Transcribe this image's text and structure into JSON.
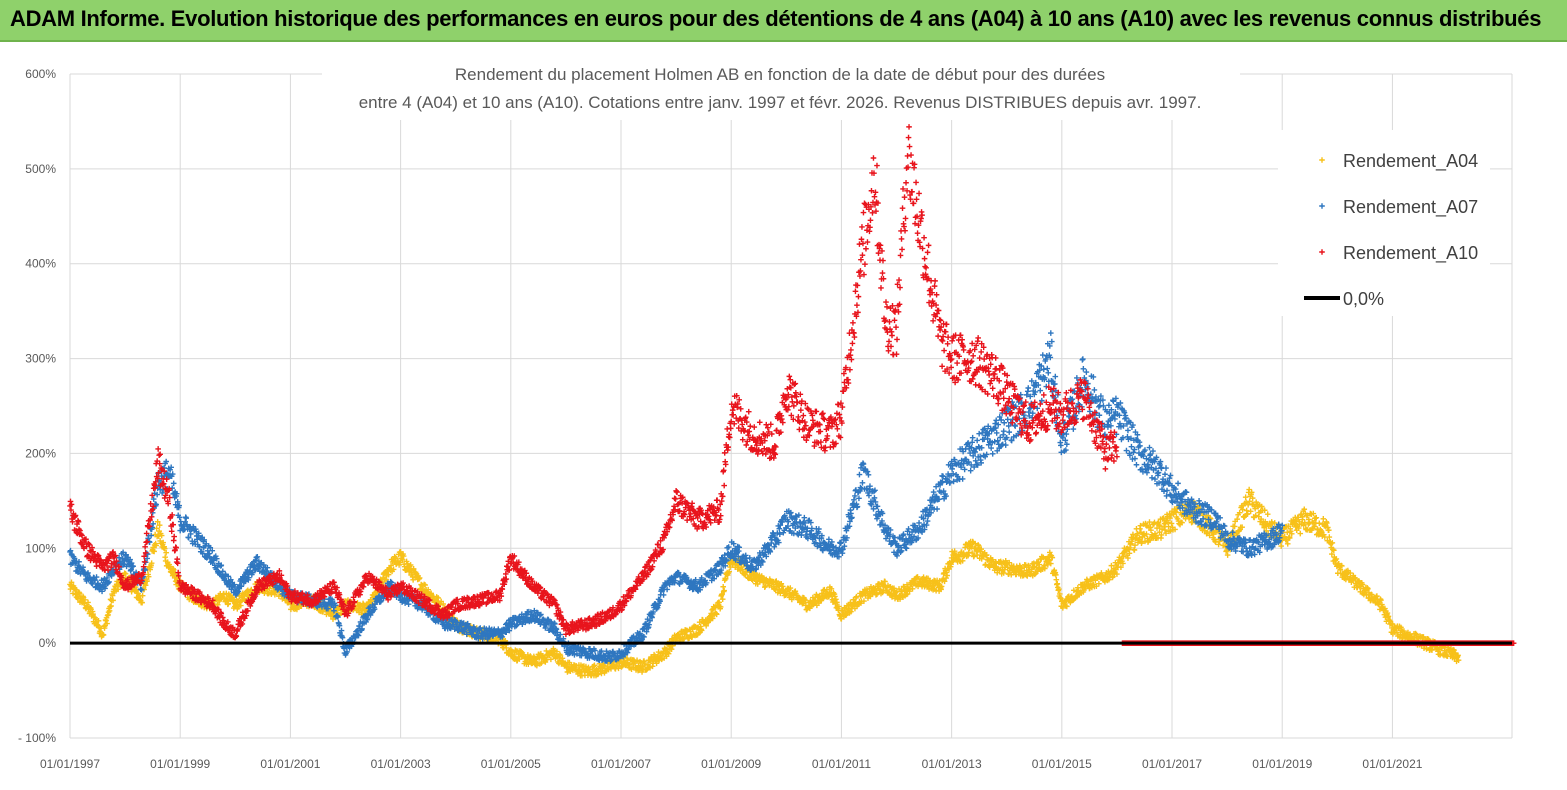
{
  "banner": {
    "text": "ADAM Informe. Evolution historique des performances en euros pour des détentions de 4 ans (A04) à 10 ans (A10) avec les revenus connus distribués"
  },
  "colors": {
    "banner_bg": "#8fd16b",
    "a04": "#f7c11a",
    "a07": "#2f77c0",
    "a10": "#e8141c",
    "zero": "#000000",
    "grid": "#d9d9d9"
  },
  "chart_data": {
    "type": "scatter",
    "title_line1": "Rendement du placement Holmen AB en fonction de la date de début pour des durées",
    "title_line2": "entre 4 (A04) et 10 ans (A10). Cotations entre janv. 1997 et févr. 2026. Revenus DISTRIBUES depuis avr. 1997.",
    "x_range": [
      "1997-01-01",
      "2023-03-01"
    ],
    "x_ticks": [
      "01/01/1997",
      "01/01/1999",
      "01/01/2001",
      "01/01/2003",
      "01/01/2005",
      "01/01/2007",
      "01/01/2009",
      "01/01/2011",
      "01/01/2013",
      "01/01/2015",
      "01/01/2017",
      "01/01/2019",
      "01/01/2021"
    ],
    "y_ticks": [
      "- 100%",
      "0%",
      "100%",
      "200%",
      "300%",
      "400%",
      "500%",
      "600%"
    ],
    "ylim_percent": [
      -100,
      600
    ],
    "grid": true,
    "legend_position": "top-right",
    "legend": [
      "Rendement_A04",
      "Rendement_A07",
      "Rendement_A10",
      "0,0%"
    ],
    "series": [
      {
        "name": "Rendement_A04",
        "x_years": [
          1997.0,
          1997.3,
          1997.6,
          1997.8,
          1998.0,
          1998.3,
          1998.6,
          1998.8,
          1999.0,
          1999.3,
          1999.6,
          1999.8,
          2000.0,
          2000.4,
          2000.8,
          2001.0,
          2001.4,
          2001.8,
          2002.0,
          2002.4,
          2002.8,
          2003.0,
          2003.4,
          2003.8,
          2004.0,
          2004.4,
          2004.8,
          2005.0,
          2005.4,
          2005.8,
          2006.0,
          2006.4,
          2006.8,
          2007.0,
          2007.4,
          2007.8,
          2008.0,
          2008.4,
          2008.8,
          2009.0,
          2009.4,
          2009.8,
          2010.0,
          2010.4,
          2010.8,
          2011.0,
          2011.4,
          2011.8,
          2012.0,
          2012.4,
          2012.8,
          2013.0,
          2013.4,
          2013.8,
          2014.0,
          2014.4,
          2014.8,
          2015.0,
          2015.4,
          2015.8,
          2016.0,
          2016.4,
          2016.8,
          2017.0,
          2017.4,
          2017.8,
          2018.0,
          2018.4,
          2018.8,
          2019.0,
          2019.4,
          2019.8,
          2020.0,
          2020.4,
          2020.8,
          2021.0,
          2021.4,
          2021.8,
          2022.0,
          2022.2
        ],
        "y_percent": [
          60,
          40,
          10,
          55,
          70,
          45,
          120,
          80,
          60,
          45,
          40,
          50,
          40,
          60,
          55,
          40,
          45,
          30,
          40,
          35,
          80,
          90,
          60,
          35,
          20,
          10,
          5,
          -10,
          -20,
          -10,
          -25,
          -30,
          -25,
          -20,
          -25,
          -10,
          5,
          15,
          40,
          90,
          70,
          60,
          55,
          40,
          55,
          30,
          50,
          60,
          50,
          65,
          60,
          90,
          100,
          80,
          80,
          75,
          90,
          40,
          60,
          70,
          80,
          115,
          120,
          130,
          140,
          115,
          100,
          150,
          120,
          110,
          130,
          120,
          80,
          60,
          40,
          15,
          5,
          -5,
          -10,
          -15
        ]
      },
      {
        "name": "Rendement_A07",
        "x_years": [
          1997.0,
          1997.3,
          1997.6,
          1997.8,
          1998.0,
          1998.3,
          1998.6,
          1998.8,
          1999.0,
          1999.3,
          1999.6,
          1999.8,
          2000.0,
          2000.4,
          2000.8,
          2001.0,
          2001.4,
          2001.8,
          2002.0,
          2002.4,
          2002.8,
          2003.0,
          2003.4,
          2003.8,
          2004.0,
          2004.4,
          2004.8,
          2005.0,
          2005.4,
          2005.8,
          2006.0,
          2006.4,
          2006.8,
          2007.0,
          2007.4,
          2007.8,
          2008.0,
          2008.4,
          2008.8,
          2009.0,
          2009.4,
          2009.8,
          2010.0,
          2010.4,
          2010.8,
          2011.0,
          2011.4,
          2011.8,
          2012.0,
          2012.4,
          2012.8,
          2013.0,
          2013.4,
          2013.8,
          2014.0,
          2014.4,
          2014.8,
          2015.0,
          2015.4,
          2015.8,
          2016.0,
          2016.4,
          2016.8,
          2017.0,
          2017.4,
          2017.8,
          2018.0,
          2018.4,
          2018.8,
          2019.0
        ],
        "y_percent": [
          90,
          70,
          60,
          80,
          90,
          60,
          170,
          180,
          130,
          110,
          90,
          70,
          55,
          85,
          60,
          50,
          45,
          40,
          -10,
          30,
          60,
          50,
          40,
          20,
          20,
          10,
          10,
          20,
          30,
          15,
          -5,
          -10,
          -15,
          -10,
          10,
          60,
          70,
          60,
          80,
          100,
          80,
          110,
          130,
          120,
          100,
          100,
          180,
          120,
          100,
          120,
          160,
          180,
          200,
          220,
          230,
          250,
          300,
          210,
          280,
          230,
          240,
          200,
          180,
          160,
          140,
          130,
          110,
          100,
          110,
          120
        ]
      },
      {
        "name": "Rendement_A10",
        "x_years": [
          1997.0,
          1997.3,
          1997.6,
          1997.8,
          1998.0,
          1998.3,
          1998.6,
          1998.8,
          1999.0,
          1999.3,
          1999.6,
          1999.8,
          2000.0,
          2000.4,
          2000.8,
          2001.0,
          2001.4,
          2001.8,
          2002.0,
          2002.4,
          2002.8,
          2003.0,
          2003.4,
          2003.8,
          2004.0,
          2004.4,
          2004.8,
          2005.0,
          2005.4,
          2005.8,
          2006.0,
          2006.4,
          2006.8,
          2007.0,
          2007.4,
          2007.8,
          2008.0,
          2008.4,
          2008.8,
          2009.0,
          2009.4,
          2009.8,
          2010.0,
          2010.4,
          2010.8,
          2011.0,
          2011.3,
          2011.6,
          2011.8,
          2012.0,
          2012.2,
          2012.4,
          2012.8,
          2013.0,
          2013.4,
          2013.8,
          2014.0,
          2014.4,
          2014.8,
          2015.0,
          2015.4,
          2015.8,
          2016.0
        ],
        "y_percent": [
          140,
          100,
          80,
          90,
          60,
          70,
          190,
          150,
          60,
          50,
          40,
          20,
          10,
          60,
          70,
          50,
          45,
          60,
          30,
          70,
          50,
          60,
          45,
          30,
          40,
          45,
          50,
          90,
          60,
          40,
          15,
          20,
          30,
          40,
          70,
          110,
          150,
          130,
          140,
          250,
          220,
          210,
          270,
          230,
          220,
          240,
          380,
          500,
          340,
          330,
          520,
          450,
          320,
          300,
          300,
          280,
          260,
          230,
          250,
          240,
          260,
          200,
          210
        ]
      },
      {
        "name": "0,0%",
        "x_years": [
          1997.0,
          2023.2
        ],
        "y_percent": [
          0,
          0
        ]
      }
    ],
    "a10_zero_band_x": [
      2016.1,
      2023.2
    ]
  }
}
